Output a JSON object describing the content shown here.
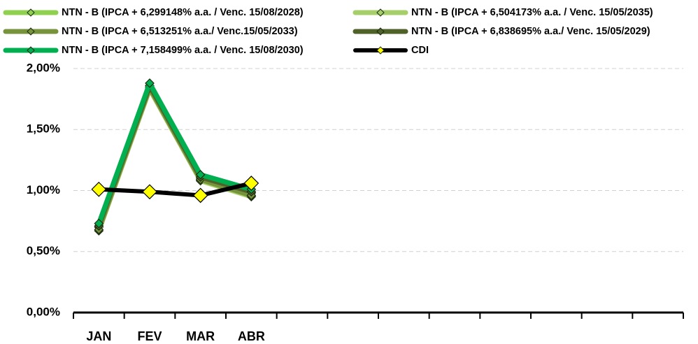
{
  "chart_data": {
    "type": "line",
    "categories": [
      "JAN",
      "FEV",
      "MAR",
      "ABR",
      null,
      null,
      null,
      null,
      null,
      null,
      null,
      null
    ],
    "series": [
      {
        "name": "NTN - B  (IPCA + 6,299148% a.a.  /  Venc. 15/08/2028)",
        "color": "#8fd14f",
        "values": [
          0.7,
          1.85,
          1.1,
          0.98,
          null,
          null,
          null,
          null,
          null,
          null,
          null,
          null
        ]
      },
      {
        "name": "NTN - B  (IPCA + 6,504173% a.a. / Venc. 15/05/2035)",
        "color": "#a6cf6a",
        "values": [
          0.67,
          1.83,
          1.08,
          0.95,
          null,
          null,
          null,
          null,
          null,
          null,
          null,
          null
        ]
      },
      {
        "name": "NTN - B  (IPCA + 6,513251% a.a./ Venc.15/05/2033)",
        "color": "#77933c",
        "values": [
          0.68,
          1.84,
          1.09,
          0.96,
          null,
          null,
          null,
          null,
          null,
          null,
          null,
          null
        ]
      },
      {
        "name": "NTN - B  (IPCA + 6,838695% a.a./ Venc. 15/05/2029)",
        "color": "#4f6228",
        "values": [
          0.71,
          1.86,
          1.11,
          0.99,
          null,
          null,
          null,
          null,
          null,
          null,
          null,
          null
        ]
      },
      {
        "name": "NTN - B  (IPCA + 7,158499% a.a. / Venc. 15/08/2030)",
        "color": "#00b050",
        "values": [
          0.73,
          1.88,
          1.13,
          1.01,
          null,
          null,
          null,
          null,
          null,
          null,
          null,
          null
        ]
      },
      {
        "name": "CDI",
        "color": "#000000",
        "marker_color": "#ffff00",
        "values": [
          1.01,
          0.99,
          0.96,
          1.06,
          null,
          null,
          null,
          null,
          null,
          null,
          null,
          null
        ]
      }
    ],
    "ylim": [
      0,
      2
    ],
    "yticks": [
      {
        "value": 0,
        "label": "0,00%"
      },
      {
        "value": 0.5,
        "label": "0,50%"
      },
      {
        "value": 1,
        "label": "1,00%"
      },
      {
        "value": 1.5,
        "label": "1,50%"
      },
      {
        "value": 2,
        "label": "2,00%"
      }
    ],
    "grid": true
  }
}
